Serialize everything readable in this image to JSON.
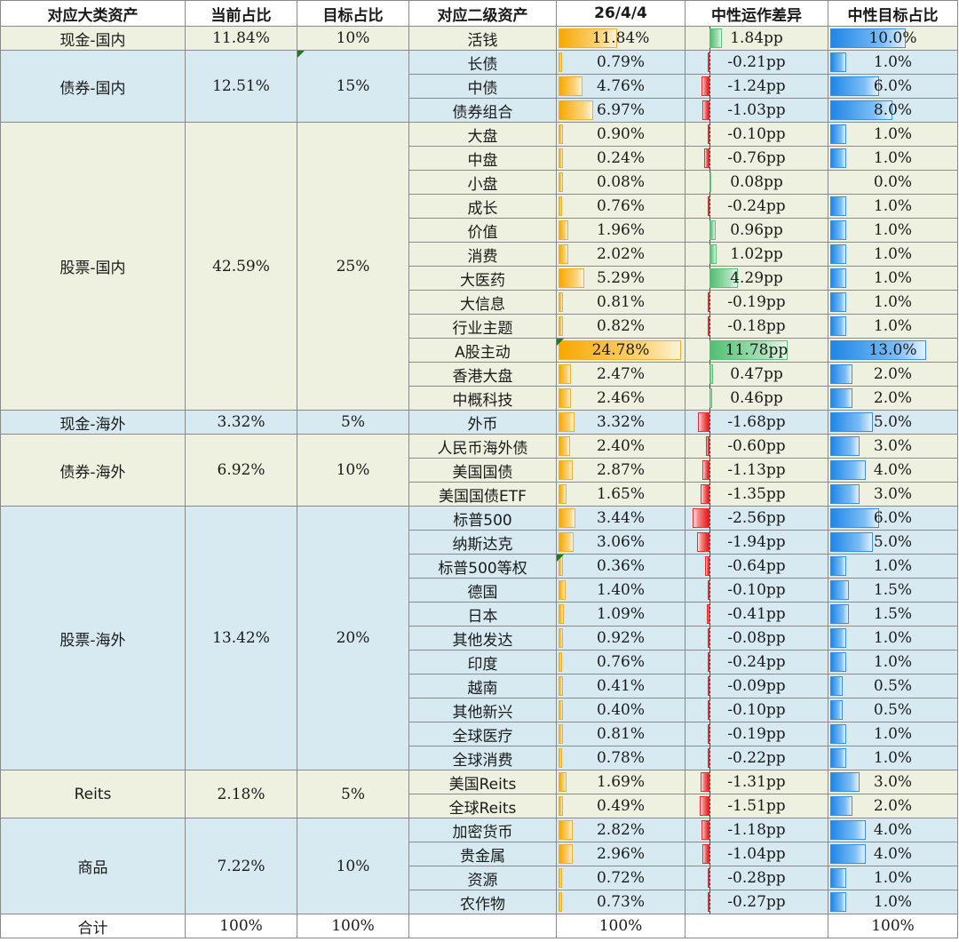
{
  "headers": {
    "major": "对应大类资产",
    "current": "当前占比",
    "target": "目标占比",
    "sub": "对应二级资产",
    "date": "26/4/4",
    "diff": "中性运作差异",
    "neutral": "中性目标占比"
  },
  "colors": {
    "green_band": "#eef1df",
    "blue_band": "#d7eaf1",
    "orange_bar": "#f7a800",
    "green_bar": "#4fbf73",
    "red_bar": "#e8151b",
    "blue_bar": "#1f86e6"
  },
  "scales": {
    "weight_max_pct": 24.78,
    "diff_max_pp": 11.78,
    "neutral_max_pct": 13.0
  },
  "groups": [
    {
      "name": "现金-国内",
      "current": "11.84%",
      "target": "10%",
      "band": "green",
      "rows": [
        {
          "sub": "活钱",
          "value": "11.84%",
          "value_num": 11.84,
          "diff": "1.84pp",
          "diff_num": 1.84,
          "neutral": "10.0%",
          "neutral_num": 10.0
        }
      ]
    },
    {
      "name": "债券-国内",
      "current": "12.51%",
      "target": "15%",
      "band": "blue",
      "target_flag": true,
      "rows": [
        {
          "sub": "长债",
          "value": "0.79%",
          "value_num": 0.79,
          "diff": "-0.21pp",
          "diff_num": -0.21,
          "neutral": "1.0%",
          "neutral_num": 1.0
        },
        {
          "sub": "中债",
          "value": "4.76%",
          "value_num": 4.76,
          "diff": "-1.24pp",
          "diff_num": -1.24,
          "neutral": "6.0%",
          "neutral_num": 6.0
        },
        {
          "sub": "债券组合",
          "value": "6.97%",
          "value_num": 6.97,
          "diff": "-1.03pp",
          "diff_num": -1.03,
          "neutral": "8.0%",
          "neutral_num": 8.0
        }
      ]
    },
    {
      "name": "股票-国内",
      "current": "42.59%",
      "target": "25%",
      "band": "green",
      "rows": [
        {
          "sub": "大盘",
          "value": "0.90%",
          "value_num": 0.9,
          "diff": "-0.10pp",
          "diff_num": -0.1,
          "neutral": "1.0%",
          "neutral_num": 1.0
        },
        {
          "sub": "中盘",
          "value": "0.24%",
          "value_num": 0.24,
          "diff": "-0.76pp",
          "diff_num": -0.76,
          "neutral": "1.0%",
          "neutral_num": 1.0
        },
        {
          "sub": "小盘",
          "value": "0.08%",
          "value_num": 0.08,
          "diff": "0.08pp",
          "diff_num": 0.08,
          "neutral": "0.0%",
          "neutral_num": 0.0
        },
        {
          "sub": "成长",
          "value": "0.76%",
          "value_num": 0.76,
          "diff": "-0.24pp",
          "diff_num": -0.24,
          "neutral": "1.0%",
          "neutral_num": 1.0
        },
        {
          "sub": "价值",
          "value": "1.96%",
          "value_num": 1.96,
          "diff": "0.96pp",
          "diff_num": 0.96,
          "neutral": "1.0%",
          "neutral_num": 1.0
        },
        {
          "sub": "消费",
          "value": "2.02%",
          "value_num": 2.02,
          "diff": "1.02pp",
          "diff_num": 1.02,
          "neutral": "1.0%",
          "neutral_num": 1.0
        },
        {
          "sub": "大医药",
          "value": "5.29%",
          "value_num": 5.29,
          "diff": "4.29pp",
          "diff_num": 4.29,
          "neutral": "1.0%",
          "neutral_num": 1.0
        },
        {
          "sub": "大信息",
          "value": "0.81%",
          "value_num": 0.81,
          "diff": "-0.19pp",
          "diff_num": -0.19,
          "neutral": "1.0%",
          "neutral_num": 1.0
        },
        {
          "sub": "行业主题",
          "value": "0.82%",
          "value_num": 0.82,
          "diff": "-0.18pp",
          "diff_num": -0.18,
          "neutral": "1.0%",
          "neutral_num": 1.0
        },
        {
          "sub": "A股主动",
          "value": "24.78%",
          "value_num": 24.78,
          "diff": "11.78pp",
          "diff_num": 11.78,
          "neutral": "13.0%",
          "neutral_num": 13.0,
          "flag": true
        },
        {
          "sub": "香港大盘",
          "value": "2.47%",
          "value_num": 2.47,
          "diff": "0.47pp",
          "diff_num": 0.47,
          "neutral": "2.0%",
          "neutral_num": 2.0
        },
        {
          "sub": "中概科技",
          "value": "2.46%",
          "value_num": 2.46,
          "diff": "0.46pp",
          "diff_num": 0.46,
          "neutral": "2.0%",
          "neutral_num": 2.0
        }
      ]
    },
    {
      "name": "现金-海外",
      "current": "3.32%",
      "target": "5%",
      "band": "blue",
      "rows": [
        {
          "sub": "外币",
          "value": "3.32%",
          "value_num": 3.32,
          "diff": "-1.68pp",
          "diff_num": -1.68,
          "neutral": "5.0%",
          "neutral_num": 5.0
        }
      ]
    },
    {
      "name": "债券-海外",
      "current": "6.92%",
      "target": "10%",
      "band": "green",
      "rows": [
        {
          "sub": "人民币海外债",
          "value": "2.40%",
          "value_num": 2.4,
          "diff": "-0.60pp",
          "diff_num": -0.6,
          "neutral": "3.0%",
          "neutral_num": 3.0
        },
        {
          "sub": "美国国债",
          "value": "2.87%",
          "value_num": 2.87,
          "diff": "-1.13pp",
          "diff_num": -1.13,
          "neutral": "4.0%",
          "neutral_num": 4.0
        },
        {
          "sub": "美国国债ETF",
          "value": "1.65%",
          "value_num": 1.65,
          "diff": "-1.35pp",
          "diff_num": -1.35,
          "neutral": "3.0%",
          "neutral_num": 3.0
        }
      ]
    },
    {
      "name": "股票-海外",
      "current": "13.42%",
      "target": "20%",
      "band": "blue",
      "rows": [
        {
          "sub": "标普500",
          "value": "3.44%",
          "value_num": 3.44,
          "diff": "-2.56pp",
          "diff_num": -2.56,
          "neutral": "6.0%",
          "neutral_num": 6.0
        },
        {
          "sub": "纳斯达克",
          "value": "3.06%",
          "value_num": 3.06,
          "diff": "-1.94pp",
          "diff_num": -1.94,
          "neutral": "5.0%",
          "neutral_num": 5.0
        },
        {
          "sub": "标普500等权",
          "value": "0.36%",
          "value_num": 0.36,
          "diff": "-0.64pp",
          "diff_num": -0.64,
          "neutral": "1.0%",
          "neutral_num": 1.0,
          "flag": true
        },
        {
          "sub": "德国",
          "value": "1.40%",
          "value_num": 1.4,
          "diff": "-0.10pp",
          "diff_num": -0.1,
          "neutral": "1.5%",
          "neutral_num": 1.5
        },
        {
          "sub": "日本",
          "value": "1.09%",
          "value_num": 1.09,
          "diff": "-0.41pp",
          "diff_num": -0.41,
          "neutral": "1.5%",
          "neutral_num": 1.5
        },
        {
          "sub": "其他发达",
          "value": "0.92%",
          "value_num": 0.92,
          "diff": "-0.08pp",
          "diff_num": -0.08,
          "neutral": "1.0%",
          "neutral_num": 1.0
        },
        {
          "sub": "印度",
          "value": "0.76%",
          "value_num": 0.76,
          "diff": "-0.24pp",
          "diff_num": -0.24,
          "neutral": "1.0%",
          "neutral_num": 1.0
        },
        {
          "sub": "越南",
          "value": "0.41%",
          "value_num": 0.41,
          "diff": "-0.09pp",
          "diff_num": -0.09,
          "neutral": "0.5%",
          "neutral_num": 0.5
        },
        {
          "sub": "其他新兴",
          "value": "0.40%",
          "value_num": 0.4,
          "diff": "-0.10pp",
          "diff_num": -0.1,
          "neutral": "0.5%",
          "neutral_num": 0.5
        },
        {
          "sub": "全球医疗",
          "value": "0.81%",
          "value_num": 0.81,
          "diff": "-0.19pp",
          "diff_num": -0.19,
          "neutral": "1.0%",
          "neutral_num": 1.0
        },
        {
          "sub": "全球消费",
          "value": "0.78%",
          "value_num": 0.78,
          "diff": "-0.22pp",
          "diff_num": -0.22,
          "neutral": "1.0%",
          "neutral_num": 1.0
        }
      ]
    },
    {
      "name": "Reits",
      "current": "2.18%",
      "target": "5%",
      "band": "green",
      "rows": [
        {
          "sub": "美国Reits",
          "value": "1.69%",
          "value_num": 1.69,
          "diff": "-1.31pp",
          "diff_num": -1.31,
          "neutral": "3.0%",
          "neutral_num": 3.0
        },
        {
          "sub": "全球Reits",
          "value": "0.49%",
          "value_num": 0.49,
          "diff": "-1.51pp",
          "diff_num": -1.51,
          "neutral": "2.0%",
          "neutral_num": 2.0
        }
      ]
    },
    {
      "name": "商品",
      "current": "7.22%",
      "target": "10%",
      "band": "blue",
      "rows": [
        {
          "sub": "加密货币",
          "value": "2.82%",
          "value_num": 2.82,
          "diff": "-1.18pp",
          "diff_num": -1.18,
          "neutral": "4.0%",
          "neutral_num": 4.0
        },
        {
          "sub": "贵金属",
          "value": "2.96%",
          "value_num": 2.96,
          "diff": "-1.04pp",
          "diff_num": -1.04,
          "neutral": "4.0%",
          "neutral_num": 4.0
        },
        {
          "sub": "资源",
          "value": "0.72%",
          "value_num": 0.72,
          "diff": "-0.28pp",
          "diff_num": -0.28,
          "neutral": "1.0%",
          "neutral_num": 1.0
        },
        {
          "sub": "农作物",
          "value": "0.73%",
          "value_num": 0.73,
          "diff": "-0.27pp",
          "diff_num": -0.27,
          "neutral": "1.0%",
          "neutral_num": 1.0
        }
      ]
    }
  ],
  "total": {
    "label": "合计",
    "current": "100%",
    "target": "100%",
    "value": "100%",
    "neutral": "100%"
  }
}
